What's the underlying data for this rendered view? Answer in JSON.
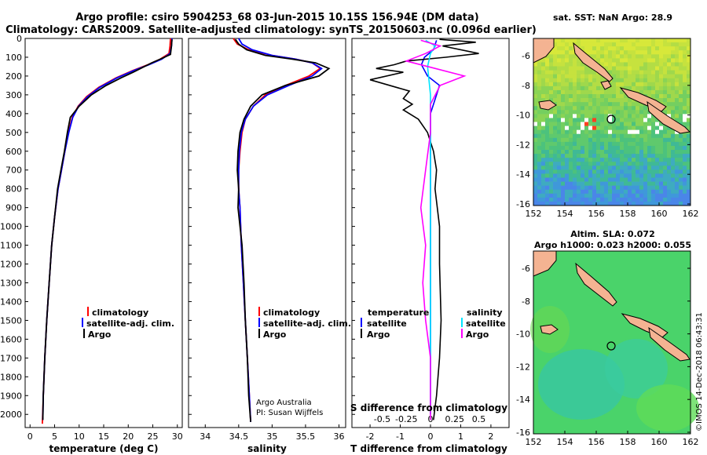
{
  "title_line1": "Argo profile: csiro 5904253_68 03-Jun-2015 10.15S 156.94E (DM data)",
  "title_line2": "Climatology: CARS2009. Satellite-adjusted climatology: synTS_20150603.nc (0.096d earlier)",
  "colors": {
    "climatology": "#ff0000",
    "satellite": "#0000ff",
    "argo": "#000000",
    "sat_salinity": "#00e5ff",
    "clim_salinity": "#ff00ff"
  },
  "chart_data": [
    {
      "type": "line",
      "xlabel": "temperature (deg C)",
      "xlim": [
        -1,
        31
      ],
      "xticks": [
        0,
        5,
        10,
        15,
        20,
        25,
        30
      ],
      "ylim": [
        0,
        2070
      ],
      "yticks": [
        0,
        100,
        200,
        300,
        400,
        500,
        600,
        700,
        800,
        900,
        1000,
        1100,
        1200,
        1300,
        1400,
        1500,
        1600,
        1700,
        1800,
        1900,
        2000
      ],
      "legend": [
        "climatology",
        "satellite-adj. clim.",
        "Argo"
      ],
      "series": [
        {
          "name": "climatology",
          "color": "#ff0000",
          "points": [
            [
              28.6,
              0
            ],
            [
              28.5,
              40
            ],
            [
              28.3,
              80
            ],
            [
              26.5,
              110
            ],
            [
              24,
              140
            ],
            [
              21,
              170
            ],
            [
              17.5,
              210
            ],
            [
              14,
              260
            ],
            [
              11.5,
              310
            ],
            [
              9.8,
              360
            ],
            [
              8.6,
              420
            ],
            [
              7.8,
              500
            ],
            [
              7.1,
              600
            ],
            [
              6.4,
              700
            ],
            [
              5.7,
              800
            ],
            [
              5.0,
              950
            ],
            [
              4.4,
              1100
            ],
            [
              3.9,
              1300
            ],
            [
              3.4,
              1500
            ],
            [
              3.0,
              1700
            ],
            [
              2.7,
              1900
            ],
            [
              2.5,
              2050
            ]
          ]
        },
        {
          "name": "satellite-adj. clim.",
          "color": "#0000ff",
          "points": [
            [
              28.9,
              0
            ],
            [
              28.8,
              40
            ],
            [
              28.5,
              80
            ],
            [
              26.8,
              110
            ],
            [
              24.2,
              140
            ],
            [
              21.2,
              170
            ],
            [
              17.7,
              210
            ],
            [
              14.2,
              260
            ],
            [
              11.7,
              310
            ],
            [
              9.9,
              360
            ],
            [
              8.7,
              420
            ],
            [
              7.9,
              500
            ],
            [
              7.1,
              600
            ],
            [
              6.4,
              700
            ],
            [
              5.7,
              800
            ],
            [
              5.0,
              950
            ],
            [
              4.4,
              1100
            ],
            [
              3.9,
              1300
            ],
            [
              3.4,
              1500
            ],
            [
              3.0,
              1700
            ],
            [
              2.7,
              1900
            ],
            [
              2.6,
              2030
            ]
          ]
        },
        {
          "name": "Argo",
          "color": "#000000",
          "points": [
            [
              28.9,
              5
            ],
            [
              28.8,
              40
            ],
            [
              28.6,
              85
            ],
            [
              26.5,
              110
            ],
            [
              24.8,
              130
            ],
            [
              22.5,
              160
            ],
            [
              21.0,
              180
            ],
            [
              18.5,
              210
            ],
            [
              15.5,
              250
            ],
            [
              12.5,
              300
            ],
            [
              10.0,
              360
            ],
            [
              8.2,
              420
            ],
            [
              7.6,
              500
            ],
            [
              7.0,
              600
            ],
            [
              6.3,
              700
            ],
            [
              5.6,
              800
            ],
            [
              5.0,
              950
            ],
            [
              4.4,
              1100
            ],
            [
              3.9,
              1300
            ],
            [
              3.4,
              1500
            ],
            [
              3.0,
              1700
            ],
            [
              2.7,
              1900
            ],
            [
              2.6,
              2030
            ]
          ]
        }
      ]
    },
    {
      "type": "line",
      "xlabel": "salinity",
      "xlim": [
        33.75,
        36.1
      ],
      "xticks": [
        34,
        34.5,
        35,
        35.5,
        36
      ],
      "legend": [
        "climatology",
        "satellite-adj. clim.",
        "Argo"
      ],
      "series": [
        {
          "name": "climatology",
          "color": "#ff0000",
          "points": [
            [
              34.42,
              0
            ],
            [
              34.48,
              30
            ],
            [
              34.65,
              60
            ],
            [
              35.0,
              90
            ],
            [
              35.35,
              110
            ],
            [
              35.6,
              130
            ],
            [
              35.72,
              160
            ],
            [
              35.55,
              200
            ],
            [
              35.2,
              250
            ],
            [
              34.9,
              300
            ],
            [
              34.72,
              360
            ],
            [
              34.6,
              430
            ],
            [
              34.55,
              500
            ],
            [
              34.52,
              600
            ],
            [
              34.5,
              700
            ],
            [
              34.5,
              800
            ],
            [
              34.52,
              900
            ],
            [
              34.54,
              1100
            ],
            [
              34.57,
              1300
            ],
            [
              34.6,
              1500
            ],
            [
              34.63,
              1700
            ],
            [
              34.66,
              1900
            ],
            [
              34.68,
              2040
            ]
          ]
        },
        {
          "name": "satellite-adj. clim.",
          "color": "#0000ff",
          "points": [
            [
              34.5,
              0
            ],
            [
              34.55,
              30
            ],
            [
              34.7,
              60
            ],
            [
              35.0,
              90
            ],
            [
              35.35,
              110
            ],
            [
              35.6,
              130
            ],
            [
              35.74,
              160
            ],
            [
              35.6,
              200
            ],
            [
              35.25,
              250
            ],
            [
              34.93,
              300
            ],
            [
              34.72,
              360
            ],
            [
              34.6,
              430
            ],
            [
              34.54,
              500
            ],
            [
              34.51,
              600
            ],
            [
              34.5,
              700
            ],
            [
              34.5,
              800
            ],
            [
              34.52,
              900
            ],
            [
              34.54,
              1100
            ],
            [
              34.57,
              1300
            ],
            [
              34.6,
              1500
            ],
            [
              34.63,
              1700
            ],
            [
              34.66,
              1900
            ],
            [
              34.68,
              2040
            ]
          ]
        },
        {
          "name": "Argo",
          "color": "#000000",
          "points": [
            [
              34.45,
              5
            ],
            [
              34.5,
              30
            ],
            [
              34.62,
              60
            ],
            [
              34.9,
              90
            ],
            [
              35.3,
              110
            ],
            [
              35.65,
              130
            ],
            [
              35.85,
              160
            ],
            [
              35.7,
              200
            ],
            [
              35.2,
              250
            ],
            [
              34.85,
              300
            ],
            [
              34.68,
              360
            ],
            [
              34.58,
              430
            ],
            [
              34.52,
              500
            ],
            [
              34.49,
              600
            ],
            [
              34.48,
              700
            ],
            [
              34.5,
              800
            ],
            [
              34.49,
              900
            ],
            [
              34.55,
              1100
            ],
            [
              34.58,
              1300
            ],
            [
              34.6,
              1500
            ],
            [
              34.63,
              1700
            ],
            [
              34.65,
              1900
            ],
            [
              34.68,
              2040
            ]
          ]
        }
      ]
    },
    {
      "type": "line",
      "xlabel": "T difference from climatology",
      "xlim": [
        -2.6,
        2.6
      ],
      "xticks": [
        -2,
        -1,
        0,
        1,
        2
      ],
      "sxlabel": "S difference from climatology",
      "sxticks": [
        -0.5,
        -0.25,
        0,
        0.25,
        0.5
      ],
      "sxtick_labels": [
        "-0.5",
        "-0.25",
        "0",
        "0.25",
        "0.5"
      ],
      "legend_temperature_title": "temperature",
      "legend_temperature": [
        "satellite",
        "Argo"
      ],
      "legend_salinity_title": "salinity",
      "legend_salinity": [
        "satellite",
        "Argo"
      ],
      "series": [
        {
          "name": "T satellite",
          "color": "#0000ff",
          "points": [
            [
              0.2,
              10
            ],
            [
              0.1,
              60
            ],
            [
              -0.2,
              100
            ],
            [
              -0.3,
              140
            ],
            [
              -0.1,
              200
            ],
            [
              0.3,
              250
            ],
            [
              0.2,
              300
            ],
            [
              0.0,
              400
            ],
            [
              0.0,
              500
            ],
            [
              0.0,
              700
            ],
            [
              0.0,
              1000
            ],
            [
              0.0,
              1500
            ],
            [
              0.0,
              2000
            ]
          ]
        },
        {
          "name": "T Argo",
          "color": "#000000",
          "points": [
            [
              0.3,
              5
            ],
            [
              1.5,
              20
            ],
            [
              0.4,
              40
            ],
            [
              1.6,
              80
            ],
            [
              0.5,
              100
            ],
            [
              -0.8,
              120
            ],
            [
              -1.2,
              140
            ],
            [
              -1.8,
              160
            ],
            [
              -0.9,
              180
            ],
            [
              -2.0,
              220
            ],
            [
              -0.7,
              280
            ],
            [
              -0.9,
              320
            ],
            [
              -0.6,
              350
            ],
            [
              -0.9,
              380
            ],
            [
              -0.4,
              430
            ],
            [
              -0.1,
              500
            ],
            [
              0.1,
              600
            ],
            [
              0.2,
              700
            ],
            [
              0.15,
              800
            ],
            [
              0.3,
              1000
            ],
            [
              0.3,
              1200
            ],
            [
              0.35,
              1500
            ],
            [
              0.3,
              1700
            ],
            [
              0.2,
              1900
            ],
            [
              0.1,
              2030
            ]
          ]
        },
        {
          "name": "S satellite",
          "color": "#00e5ff",
          "points": [
            [
              -0.05,
              10
            ],
            [
              0.05,
              40
            ],
            [
              0.0,
              80
            ],
            [
              -0.03,
              150
            ],
            [
              0.0,
              300
            ],
            [
              0.0,
              500
            ],
            [
              0.0,
              1000
            ],
            [
              0.0,
              2000
            ]
          ]
        },
        {
          "name": "S Argo",
          "color": "#ff00ff",
          "points": [
            [
              -0.1,
              10
            ],
            [
              0.1,
              40
            ],
            [
              -0.05,
              80
            ],
            [
              -0.25,
              120
            ],
            [
              0.05,
              160
            ],
            [
              0.35,
              200
            ],
            [
              0.1,
              250
            ],
            [
              0.0,
              350
            ],
            [
              0.0,
              500
            ],
            [
              -0.05,
              700
            ],
            [
              -0.1,
              900
            ],
            [
              -0.05,
              1100
            ],
            [
              -0.08,
              1300
            ],
            [
              -0.05,
              1500
            ],
            [
              0.0,
              1700
            ],
            [
              0.0,
              1900
            ],
            [
              0.0,
              2030
            ]
          ]
        }
      ]
    }
  ],
  "annotation_line1": "Argo Australia",
  "annotation_line2": "PI: Susan Wijffels",
  "map_top": {
    "title": "sat. SST: NaN Argo: 28.9",
    "xticks": [
      "152",
      "154",
      "156",
      "158",
      "160",
      "162"
    ],
    "yticks": [
      "-6",
      "-8",
      "-10",
      "-12",
      "-14",
      "-16"
    ]
  },
  "map_bottom": {
    "title_line1": "Altim. SLA: 0.072",
    "title_line2": "Argo h1000: 0.023 h2000: 0.055",
    "xticks": [
      "152",
      "154",
      "156",
      "158",
      "160",
      "162"
    ],
    "yticks": [
      "-6",
      "-8",
      "-10",
      "-12",
      "-14",
      "-16"
    ]
  },
  "credit": "©IMOS 14-Dec-2018 06:43:31"
}
